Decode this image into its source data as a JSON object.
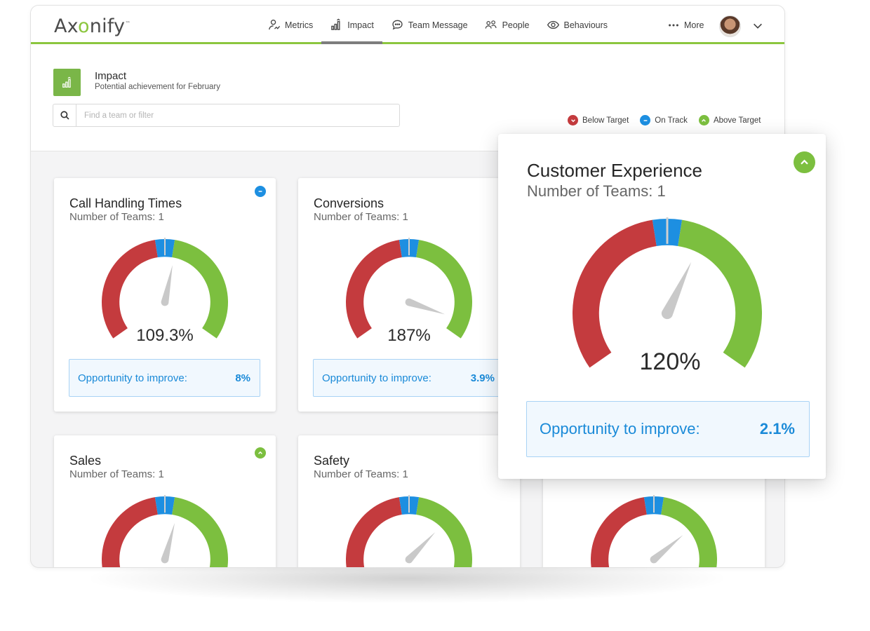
{
  "app": {
    "logo_pre": "Ax",
    "logo_o": "o",
    "logo_post": "nify",
    "logo_tm": "™"
  },
  "nav": {
    "items": [
      {
        "label": "Metrics",
        "icon": "metrics-person-icon"
      },
      {
        "label": "Impact",
        "icon": "bar-chart-icon",
        "active": true
      },
      {
        "label": "Team Message",
        "icon": "chat-bubble-icon"
      },
      {
        "label": "People",
        "icon": "people-icon"
      },
      {
        "label": "Behaviours",
        "icon": "eye-icon"
      }
    ],
    "more_label": "More"
  },
  "header": {
    "title": "Impact",
    "subtitle": "Potential achievement for February",
    "search_placeholder": "Find a team or filter"
  },
  "legend": {
    "below": "Below Target",
    "on_track": "On Track",
    "above": "Above Target"
  },
  "colors": {
    "below": "#c43b3e",
    "on_track": "#1d8fe1",
    "above": "#7cbf3f",
    "accent_green": "#8cc63f"
  },
  "cards": [
    {
      "title": "Call Handling Times",
      "teams": "Number of Teams: 1",
      "value": "109.3%",
      "status": "on_track",
      "needle_percent": 109.3,
      "opp_label": "Opportunity to improve:",
      "opp_value": "8%"
    },
    {
      "title": "Conversions",
      "teams": "Number of Teams: 1",
      "value": "187%",
      "status": "above",
      "needle_percent": 187,
      "opp_label": "Opportunity to improve:",
      "opp_value": "3.9%"
    },
    {
      "title": "Sales",
      "teams": "Number of Teams: 1",
      "status": "above",
      "needle_percent": 112
    },
    {
      "title": "Safety",
      "teams": "Number of Teams: 1",
      "status": "above",
      "needle_percent": 135
    },
    {
      "title": "",
      "teams": "",
      "status": "above",
      "needle_percent": 140
    }
  ],
  "popup": {
    "title": "Customer Experience",
    "teams": "Number of Teams: 1",
    "value": "120%",
    "status": "above",
    "needle_percent": 120,
    "opp_label": "Opportunity to improve:",
    "opp_value": "2.1%"
  }
}
